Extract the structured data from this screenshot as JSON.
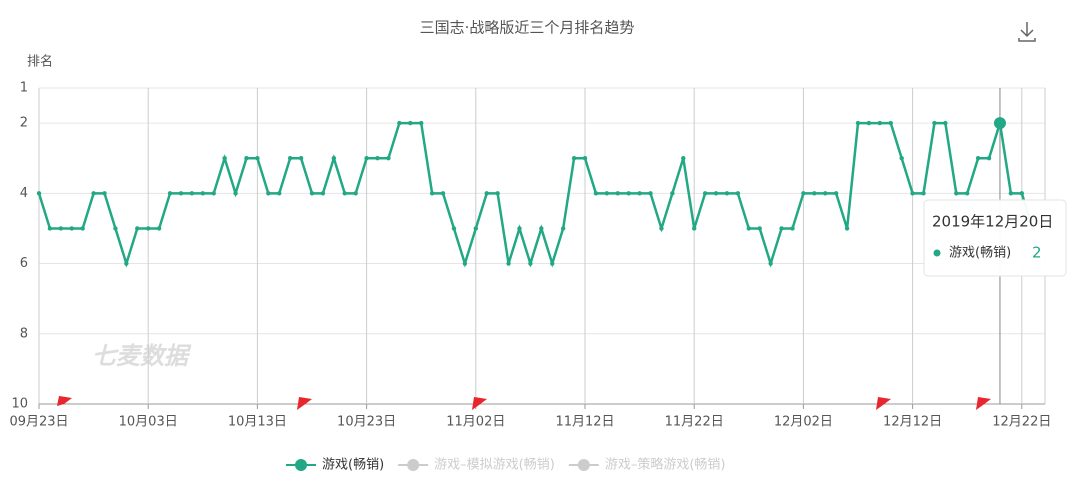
{
  "chart_data": {
    "type": "line",
    "title": "三国志·战略版近三个月排名趋势",
    "y_label": "排名",
    "watermark": "七麦数据",
    "categories": [
      "09月23日",
      null,
      null,
      null,
      null,
      null,
      null,
      null,
      null,
      null,
      "10月03日",
      null,
      null,
      null,
      null,
      null,
      null,
      null,
      null,
      null,
      "10月13日",
      null,
      null,
      null,
      null,
      null,
      null,
      null,
      null,
      null,
      "10月23日",
      null,
      null,
      null,
      null,
      null,
      null,
      null,
      null,
      null,
      "11月02日",
      null,
      null,
      null,
      null,
      null,
      null,
      null,
      null,
      null,
      "11月12日",
      null,
      null,
      null,
      null,
      null,
      null,
      null,
      null,
      null,
      "11月22日",
      null,
      null,
      null,
      null,
      null,
      null,
      null,
      null,
      null,
      "12月02日",
      null,
      null,
      null,
      null,
      null,
      null,
      null,
      null,
      null,
      "12月12日",
      null,
      null,
      null,
      null,
      null,
      null,
      null,
      null,
      null,
      "12月22日",
      null
    ],
    "series": [
      {
        "name": "游戏(畅销)",
        "color": "#22a884",
        "values": [
          4,
          5,
          5,
          5,
          5,
          4,
          4,
          5,
          6,
          5,
          5,
          5,
          4,
          4,
          4,
          4,
          4,
          3,
          4,
          3,
          3,
          4,
          4,
          3,
          3,
          4,
          4,
          3,
          4,
          4,
          3,
          3,
          3,
          2,
          2,
          2,
          4,
          4,
          5,
          6,
          5,
          4,
          4,
          6,
          5,
          6,
          5,
          6,
          5,
          3,
          3,
          4,
          4,
          4,
          4,
          4,
          4,
          5,
          4,
          3,
          5,
          4,
          4,
          4,
          4,
          5,
          5,
          6,
          5,
          5,
          4,
          4,
          4,
          4,
          5,
          2,
          2,
          2,
          2,
          3,
          4,
          4,
          2,
          2,
          4,
          4,
          3,
          3,
          2,
          4,
          4,
          5
        ]
      }
    ],
    "hidden_series": [
      {
        "name": "游戏–模拟游戏(畅销)",
        "color": "#cccccc"
      },
      {
        "name": "游戏–策略游戏(畅销)",
        "color": "#cccccc"
      }
    ],
    "ylim": [
      10,
      1
    ],
    "yticks": [
      1,
      2,
      4,
      6,
      8,
      10
    ],
    "grid": true,
    "tooltip": {
      "title": "2019年12月20日"
    }
  }
}
